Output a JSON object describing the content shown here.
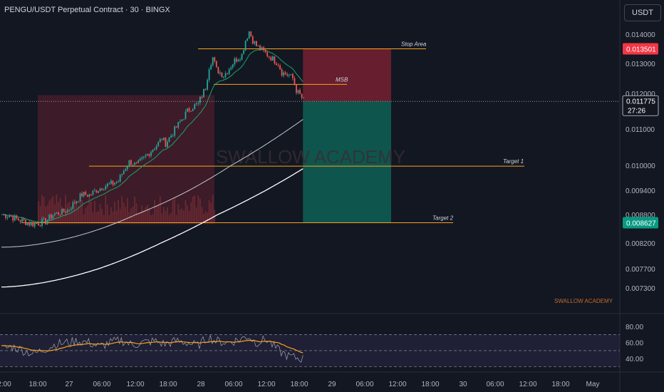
{
  "header": {
    "title": "PENGU/USDT Perpetual Contract · 30 · BINGX",
    "currency_button": "USDT"
  },
  "watermark": {
    "center": "SWALLOW ACADEMY",
    "corner": "SWALLOW ACADEMY"
  },
  "price_axis": {
    "ticks": [
      "0.014000",
      "0.013000",
      "0.012000",
      "0.011000",
      "0.010000",
      "0.009400",
      "0.008800",
      "0.008200",
      "0.007700",
      "0.007300"
    ],
    "badges": [
      {
        "text": "0.013501",
        "color": "#f23645"
      },
      {
        "text": "0.011775",
        "sub": "27:26",
        "color": "#131722"
      },
      {
        "text": "0.008627",
        "color": "#089981"
      }
    ]
  },
  "rsi_axis": {
    "ticks": [
      "80.00",
      "60.00",
      "40.00"
    ]
  },
  "time_axis": {
    "ticks": [
      "2:00",
      "18:00",
      "27",
      "06:00",
      "12:00",
      "18:00",
      "28",
      "06:00",
      "12:00",
      "18:00",
      "29",
      "06:00",
      "12:00",
      "18:00",
      "30",
      "06:00",
      "12:00",
      "18:00",
      "May"
    ]
  },
  "annotations": {
    "stop_area": "Stop Area",
    "msb": "MSB",
    "target1": "Target 1",
    "target2": "Target 2"
  },
  "colors": {
    "background": "#131722",
    "up": "#26a69a",
    "down": "#ef5350",
    "orange": "#f7a21b",
    "ema_green": "#1aa36f",
    "ma_white": "#ffffff",
    "rsi_line": "#b2b5be",
    "rsi_ma": "#f7a21b",
    "stop_zone": "#8c2233",
    "target_zone": "#0d6b5d"
  },
  "chart_data": {
    "type": "candlestick",
    "symbol": "PENGU/USDT",
    "timeframe": "30",
    "exchange": "BINGX",
    "price_range": [
      0.007,
      0.0143
    ],
    "levels": {
      "stop_area": 0.0135,
      "msb": 0.0123,
      "current": 0.011775,
      "target1": 0.00998,
      "target2": 0.008627
    },
    "price_path": [
      [
        0,
        0.0088
      ],
      [
        4,
        0.00878
      ],
      [
        8,
        0.0087
      ],
      [
        12,
        0.00866
      ],
      [
        16,
        0.0086
      ],
      [
        20,
        0.00862
      ],
      [
        24,
        0.00866
      ],
      [
        28,
        0.0088
      ],
      [
        32,
        0.00885
      ],
      [
        36,
        0.0089
      ],
      [
        40,
        0.0091
      ],
      [
        44,
        0.0093
      ],
      [
        48,
        0.00928
      ],
      [
        52,
        0.0094
      ],
      [
        56,
        0.0095
      ],
      [
        60,
        0.00955
      ],
      [
        64,
        0.00962
      ],
      [
        66,
        0.0098
      ],
      [
        70,
        0.0101
      ],
      [
        74,
        0.01
      ],
      [
        78,
        0.0102
      ],
      [
        82,
        0.0104
      ],
      [
        86,
        0.0106
      ],
      [
        88,
        0.01075
      ],
      [
        90,
        0.0106
      ],
      [
        94,
        0.0109
      ],
      [
        98,
        0.0112
      ],
      [
        102,
        0.0115
      ],
      [
        104,
        0.0116
      ],
      [
        108,
        0.0117
      ],
      [
        112,
        0.0122
      ],
      [
        114,
        0.0129
      ],
      [
        116,
        0.0132
      ],
      [
        118,
        0.0128
      ],
      [
        120,
        0.0127
      ],
      [
        122,
        0.0126
      ],
      [
        124,
        0.01275
      ],
      [
        128,
        0.0131
      ],
      [
        132,
        0.0133
      ],
      [
        134,
        0.0138
      ],
      [
        136,
        0.0141
      ],
      [
        138,
        0.0138
      ],
      [
        140,
        0.0136
      ],
      [
        144,
        0.0134
      ],
      [
        148,
        0.0132
      ],
      [
        152,
        0.013
      ],
      [
        154,
        0.0127
      ],
      [
        158,
        0.0126
      ],
      [
        160,
        0.0125
      ],
      [
        162,
        0.0121
      ],
      [
        164,
        0.01195
      ],
      [
        166,
        0.0118
      ]
    ],
    "rsi": {
      "range": [
        25,
        90
      ],
      "upper_band": 70,
      "mid_band": 50,
      "lower_band": 30,
      "path": [
        [
          0,
          52
        ],
        [
          6,
          55
        ],
        [
          12,
          50
        ],
        [
          18,
          46
        ],
        [
          24,
          52
        ],
        [
          30,
          58
        ],
        [
          36,
          60
        ],
        [
          42,
          62
        ],
        [
          48,
          60
        ],
        [
          54,
          55
        ],
        [
          60,
          60
        ],
        [
          66,
          63
        ],
        [
          72,
          57
        ],
        [
          78,
          60
        ],
        [
          84,
          62
        ],
        [
          90,
          58
        ],
        [
          96,
          62
        ],
        [
          102,
          60
        ],
        [
          108,
          56
        ],
        [
          114,
          67
        ],
        [
          118,
          62
        ],
        [
          124,
          60
        ],
        [
          130,
          63
        ],
        [
          136,
          68
        ],
        [
          140,
          60
        ],
        [
          146,
          64
        ],
        [
          150,
          55
        ],
        [
          154,
          48
        ],
        [
          158,
          43
        ],
        [
          162,
          41
        ],
        [
          166,
          40
        ]
      ]
    }
  }
}
